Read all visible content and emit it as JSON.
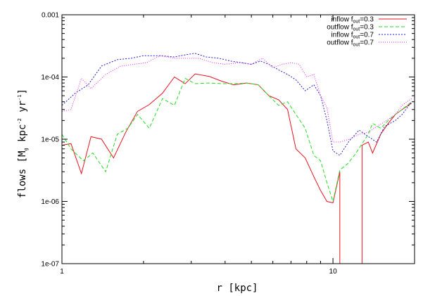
{
  "chart_data": {
    "type": "line",
    "xscale": "log",
    "yscale": "log",
    "xlim": [
      1,
      20
    ],
    "ylim": [
      1e-07,
      0.001
    ],
    "x_ticks": [
      {
        "value": 1,
        "label": "1"
      },
      {
        "value": 10,
        "label": "10"
      }
    ],
    "y_ticks": [
      {
        "value": 1e-07,
        "label": "1e-07"
      },
      {
        "value": 1e-06,
        "label": "1e-06"
      },
      {
        "value": 1e-05,
        "label": "1e-05"
      },
      {
        "value": 0.0001,
        "label": "1e-04"
      },
      {
        "value": 0.001,
        "label": "0.001"
      }
    ],
    "xlabel": "r  [kpc]",
    "ylabel": {
      "prefix": "flows  [M",
      "sub": "g",
      "suffix": "  kpc",
      "sup1": "-2",
      "mid": "  yr",
      "sup2": "-1",
      "end": "]"
    },
    "legend_position": "top-right",
    "series": [
      {
        "name": "inflow f_out=0.3",
        "label": {
          "main": "inflow f",
          "sub": "out",
          "tail": "=0.3"
        },
        "color": "#e8141e",
        "dash": "solid",
        "points": [
          [
            1.0,
            8e-06
          ],
          [
            1.08,
            8.5e-06
          ],
          [
            1.18,
            2.8e-06
          ],
          [
            1.28,
            1.1e-05
          ],
          [
            1.4,
            1e-05
          ],
          [
            1.55,
            5e-06
          ],
          [
            1.72,
            1.3e-05
          ],
          [
            1.9,
            2.8e-05
          ],
          [
            2.1,
            3.6e-05
          ],
          [
            2.35,
            5.5e-05
          ],
          [
            2.6,
            0.0001
          ],
          [
            2.85,
            7.8e-05
          ],
          [
            3.1,
            0.000112
          ],
          [
            3.5,
            0.000102
          ],
          [
            3.9,
            8.5e-05
          ],
          [
            4.3,
            7.5e-05
          ],
          [
            4.8,
            8e-05
          ],
          [
            5.3,
            7.5e-05
          ],
          [
            5.8,
            5e-05
          ],
          [
            6.3,
            4.3e-05
          ],
          [
            6.8,
            3e-05
          ],
          [
            7.3,
            7e-06
          ],
          [
            7.9,
            5e-06
          ],
          [
            8.5,
            2.5e-06
          ],
          [
            9.0,
            1.5e-06
          ],
          [
            9.5,
            1e-06
          ],
          [
            10.0,
            9.5e-07
          ],
          [
            10.6,
            3e-06
          ],
          [
            10.6,
            1e-07
          ],
          [
            12.8,
            1e-07
          ],
          [
            12.8,
            8e-06
          ],
          [
            13.5,
            9e-06
          ],
          [
            14.0,
            6e-06
          ],
          [
            15.0,
            1.2e-05
          ],
          [
            16.0,
            1.8e-05
          ],
          [
            17.0,
            2.5e-05
          ],
          [
            18.0,
            3e-05
          ],
          [
            19.5,
            3.8e-05
          ]
        ]
      },
      {
        "name": "outflow f_out=0.3",
        "label": {
          "main": "outflow f",
          "sub": "out",
          "tail": "=0.3"
        },
        "color": "#22dd22",
        "dash": "dashed",
        "points": [
          [
            1.0,
            1.2e-05
          ],
          [
            1.08,
            7e-06
          ],
          [
            1.2,
            4.5e-06
          ],
          [
            1.3,
            6e-06
          ],
          [
            1.45,
            3e-06
          ],
          [
            1.6,
            1.2e-05
          ],
          [
            1.75,
            1.5e-05
          ],
          [
            1.9,
            2.5e-05
          ],
          [
            2.1,
            1.5e-05
          ],
          [
            2.35,
            4.5e-05
          ],
          [
            2.6,
            3.5e-05
          ],
          [
            2.85,
            9.5e-05
          ],
          [
            3.1,
            7.8e-05
          ],
          [
            3.5,
            8e-05
          ],
          [
            3.9,
            7.8e-05
          ],
          [
            4.3,
            7.8e-05
          ],
          [
            4.8,
            8e-05
          ],
          [
            5.3,
            7.5e-05
          ],
          [
            5.8,
            5e-05
          ],
          [
            6.3,
            3.5e-05
          ],
          [
            6.8,
            4e-05
          ],
          [
            7.3,
            2.5e-05
          ],
          [
            7.9,
            1.5e-05
          ],
          [
            8.5,
            5.5e-06
          ],
          [
            9.0,
            4.5e-06
          ],
          [
            9.5,
            2e-06
          ],
          [
            10.0,
            1e-06
          ],
          [
            10.6,
            3.2e-06
          ],
          [
            11.3,
            4e-06
          ],
          [
            12.0,
            5.5e-06
          ],
          [
            12.7,
            8e-06
          ],
          [
            13.5,
            1.2e-05
          ],
          [
            14.0,
            1.8e-05
          ],
          [
            15.0,
            1.5e-05
          ],
          [
            16.0,
            2e-05
          ],
          [
            17.0,
            2.5e-05
          ],
          [
            18.0,
            3e-05
          ],
          [
            19.5,
            4e-05
          ]
        ]
      },
      {
        "name": "inflow f_out=0.7",
        "label": {
          "main": "inflow f",
          "sub": "out",
          "tail": "=0.7"
        },
        "color": "#2222cc",
        "dash": "dotted-dense",
        "points": [
          [
            1.0,
            3.5e-05
          ],
          [
            1.12,
            5.5e-05
          ],
          [
            1.25,
            7.5e-05
          ],
          [
            1.4,
            0.00015
          ],
          [
            1.6,
            0.00019
          ],
          [
            1.8,
            0.0002
          ],
          [
            2.0,
            0.00022
          ],
          [
            2.3,
            0.00022
          ],
          [
            2.6,
            0.00021
          ],
          [
            2.9,
            0.00023
          ],
          [
            3.1,
            0.00024
          ],
          [
            3.4,
            0.00021
          ],
          [
            3.8,
            0.0002
          ],
          [
            4.2,
            0.00018
          ],
          [
            4.6,
            0.00017
          ],
          [
            5.0,
            0.00016
          ],
          [
            5.4,
            0.00018
          ],
          [
            5.8,
            0.00016
          ],
          [
            6.3,
            0.00013
          ],
          [
            6.8,
            0.00011
          ],
          [
            7.3,
            9e-05
          ],
          [
            7.9,
            6e-05
          ],
          [
            8.5,
            7.5e-05
          ],
          [
            9.0,
            5e-05
          ],
          [
            9.5,
            2e-05
          ],
          [
            10.0,
            6.5e-06
          ],
          [
            10.6,
            5.5e-06
          ],
          [
            11.5,
            9.5e-06
          ],
          [
            12.5,
            1.4e-05
          ],
          [
            13.5,
            1.1e-05
          ],
          [
            14.5,
            9e-06
          ],
          [
            15.5,
            1.6e-05
          ],
          [
            17.0,
            2e-05
          ],
          [
            18.0,
            2.5e-05
          ],
          [
            19.5,
            4e-05
          ]
        ]
      },
      {
        "name": "outflow f_out=0.7",
        "label": {
          "main": "outflow f",
          "sub": "out",
          "tail": "=0.7"
        },
        "color": "#ee22ee",
        "dash": "dotted",
        "points": [
          [
            1.0,
            2.8e-05
          ],
          [
            1.08,
            3e-05
          ],
          [
            1.18,
            9.5e-05
          ],
          [
            1.28,
            6.5e-05
          ],
          [
            1.45,
            0.00011
          ],
          [
            1.65,
            0.00015
          ],
          [
            1.85,
            0.00016
          ],
          [
            2.05,
            0.00017
          ],
          [
            2.3,
            0.00022
          ],
          [
            2.6,
            0.0002
          ],
          [
            2.9,
            0.0002
          ],
          [
            3.2,
            0.0002
          ],
          [
            3.6,
            0.00017
          ],
          [
            4.0,
            0.00016
          ],
          [
            4.5,
            0.00017
          ],
          [
            5.0,
            0.00016
          ],
          [
            5.5,
            0.0002
          ],
          [
            6.0,
            0.00014
          ],
          [
            6.5,
            0.00016
          ],
          [
            7.0,
            0.00017
          ],
          [
            7.5,
            0.00016
          ],
          [
            8.0,
            0.0001
          ],
          [
            8.5,
            0.00011
          ],
          [
            9.0,
            5e-05
          ],
          [
            9.5,
            3.2e-05
          ],
          [
            10.0,
            9e-06
          ],
          [
            10.6,
            9e-06
          ],
          [
            11.5,
            1e-05
          ],
          [
            12.5,
            1.2e-05
          ],
          [
            13.5,
            1.3e-05
          ],
          [
            14.5,
            1.6e-05
          ],
          [
            15.5,
            1.9e-05
          ],
          [
            17.0,
            2.5e-05
          ],
          [
            18.0,
            3.5e-05
          ],
          [
            19.5,
            4.5e-05
          ]
        ]
      }
    ]
  }
}
